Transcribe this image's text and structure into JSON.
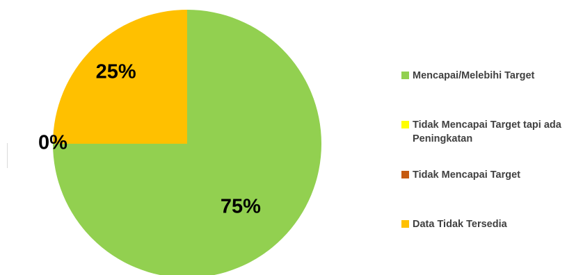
{
  "chart_data": {
    "type": "pie",
    "title": "",
    "categories": [
      "Mencapai/Melebihi Target",
      "Tidak Mencapai Target tapi ada Peningkatan",
      "Tidak Mencapai Target",
      "Data Tidak Tersedia"
    ],
    "values": [
      75,
      0,
      0,
      25
    ],
    "data_labels": [
      "75%",
      "",
      "0%",
      "25%"
    ],
    "colors": [
      "#92D050",
      "#FFFF00",
      "#C55A11",
      "#FFC000"
    ],
    "legend_position": "right",
    "start_angle_deg": 0,
    "direction": "clockwise"
  },
  "legend": {
    "items": [
      {
        "label": "Mencapai/Melebihi Target",
        "color": "#92D050"
      },
      {
        "label": "Tidak Mencapai Target tapi ada Peningkatan",
        "color": "#FFFF00"
      },
      {
        "label": "Tidak Mencapai Target",
        "color": "#C55A11"
      },
      {
        "label": "Data Tidak Tersedia",
        "color": "#FFC000"
      }
    ]
  }
}
